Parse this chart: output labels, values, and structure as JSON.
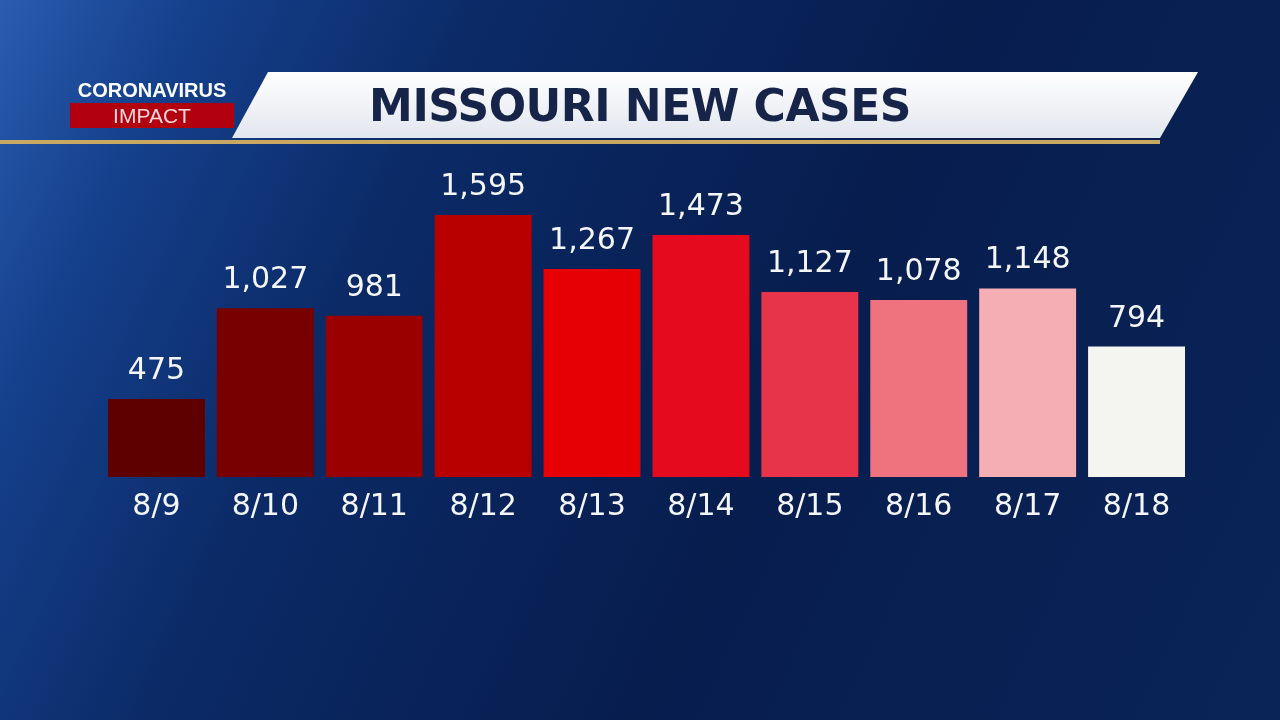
{
  "chart_data": {
    "type": "bar",
    "title": "MISSOURI NEW CASES",
    "subtitle": "CORONAVIRUS IMPACT",
    "categories": [
      "8/9",
      "8/10",
      "8/11",
      "8/12",
      "8/13",
      "8/14",
      "8/15",
      "8/16",
      "8/17",
      "8/18"
    ],
    "values": [
      475,
      1027,
      981,
      1595,
      1267,
      1473,
      1127,
      1078,
      1148,
      794
    ],
    "colors": [
      "#5e0000",
      "#780000",
      "#9a0000",
      "#b80000",
      "#e60005",
      "#e60a1e",
      "#e8344a",
      "#ef737e",
      "#f5aeb4",
      "#f4f4f0"
    ],
    "value_labels": [
      "475",
      "1,027",
      "981",
      "1,595",
      "1,267",
      "1,473",
      "1,127",
      "1,078",
      "1,148",
      "794"
    ]
  }
}
